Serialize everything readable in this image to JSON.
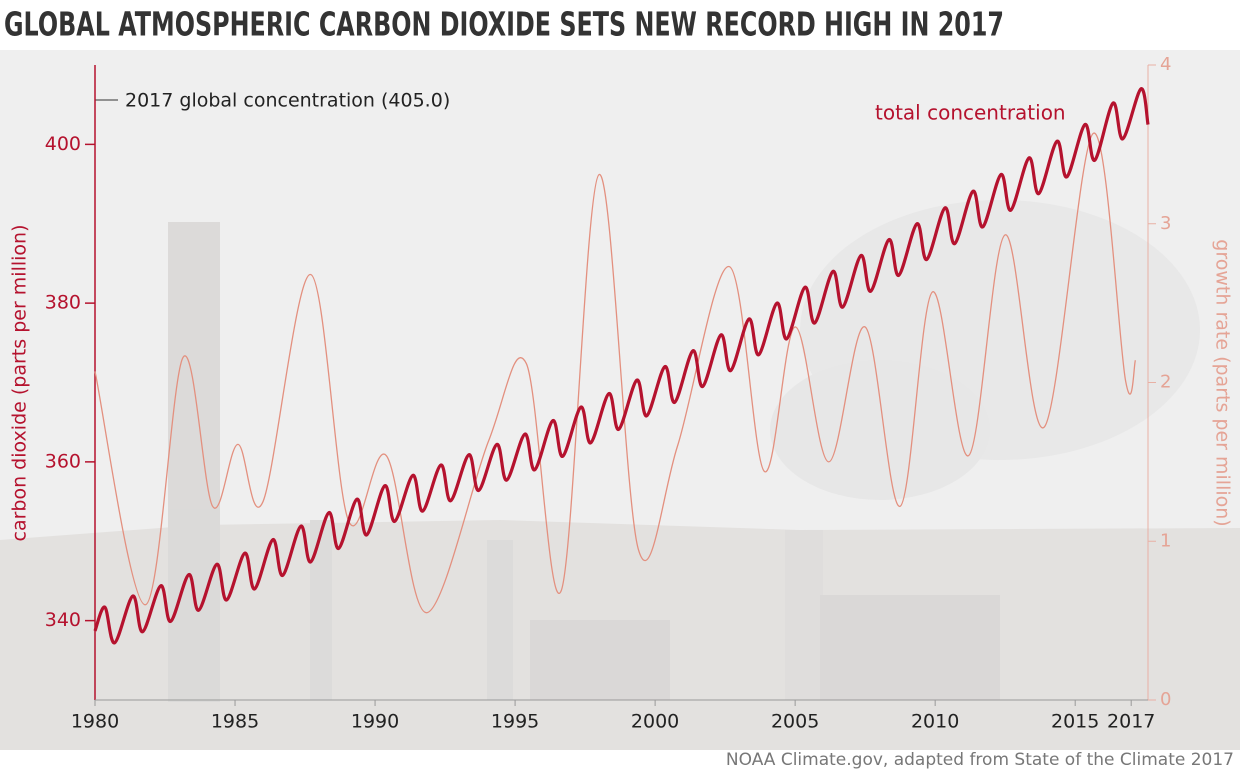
{
  "chart_data": {
    "type": "line",
    "title": "GLOBAL ATMOSPHERIC CARBON DIOXIDE SETS NEW RECORD HIGH IN 2017",
    "ylabel": "carbon dioxide (parts per million)",
    "y2label": "growth rate (parts per million)",
    "annotations": [
      "2017 global concentration (405.0)",
      "total concentration"
    ],
    "source": "NOAA Climate.gov, adapted from State of the Climate 2017",
    "xlim": [
      1980,
      2017.6
    ],
    "xticks": [
      1980,
      1985,
      1990,
      1995,
      2000,
      2005,
      2010,
      2015,
      2017
    ],
    "ylim": [
      330,
      410
    ],
    "yticks": [
      340,
      360,
      380,
      400
    ],
    "y2lim": [
      0,
      4
    ],
    "y2ticks": [
      0,
      1,
      2,
      3,
      4
    ],
    "series": [
      {
        "color": "#b5122e",
        "x": [
          1980,
          1980.35,
          1980.7,
          1981.35,
          1981.7,
          1982.35,
          1982.7,
          1983.35,
          1983.7,
          1984.35,
          1984.7,
          1985.35,
          1985.7,
          1986.35,
          1986.7,
          1987.35,
          1987.7,
          1988.35,
          1988.7,
          1989.35,
          1989.7,
          1990.35,
          1990.7,
          1991.35,
          1991.7,
          1992.35,
          1992.7,
          1993.35,
          1993.7,
          1994.35,
          1994.7,
          1995.35,
          1995.7,
          1996.35,
          1996.7,
          1997.35,
          1997.7,
          1998.35,
          1998.7,
          1999.35,
          1999.7,
          2000.35,
          2000.7,
          2001.35,
          2001.7,
          2002.35,
          2002.7,
          2003.35,
          2003.7,
          2004.35,
          2004.7,
          2005.35,
          2005.7,
          2006.35,
          2006.7,
          2007.35,
          2007.7,
          2008.35,
          2008.7,
          2009.35,
          2009.7,
          2010.35,
          2010.7,
          2011.35,
          2011.7,
          2012.35,
          2012.7,
          2013.35,
          2013.7,
          2014.35,
          2014.7,
          2015.35,
          2015.7,
          2016.35,
          2016.7,
          2017.35,
          2017.6
        ],
        "values": [
          338.7,
          341.7,
          337.2,
          343.1,
          338.6,
          344.4,
          339.9,
          345.8,
          341.3,
          347.1,
          342.6,
          348.5,
          344.0,
          350.2,
          345.7,
          351.9,
          347.4,
          353.6,
          349.1,
          355.3,
          350.8,
          357.0,
          352.5,
          358.3,
          353.8,
          359.6,
          355.1,
          360.9,
          356.4,
          362.2,
          357.7,
          363.5,
          359.0,
          365.2,
          360.7,
          366.9,
          362.4,
          368.6,
          364.1,
          370.3,
          365.8,
          372.0,
          367.5,
          374.0,
          369.5,
          376.0,
          371.5,
          378.0,
          373.5,
          380.0,
          375.5,
          382.0,
          377.5,
          384.0,
          379.5,
          386.0,
          381.5,
          388.0,
          383.5,
          390.0,
          385.5,
          392.0,
          387.5,
          394.1,
          389.6,
          396.2,
          391.7,
          398.3,
          393.8,
          400.4,
          395.9,
          402.5,
          398.0,
          405.2,
          400.7,
          407.0,
          402.5
        ]
      },
      {
        "color": "#e3907f",
        "axis": "y2",
        "x": [
          1980.0,
          1981.8,
          1983.15,
          1984.2,
          1985.1,
          1986.0,
          1987.7,
          1989.05,
          1990.4,
          1991.85,
          1994.05,
          1995.4,
          1996.65,
          1998.0,
          1999.4,
          2000.8,
          2002.65,
          2003.9,
          2005.0,
          2006.2,
          2007.5,
          2008.75,
          2009.9,
          2011.2,
          2012.5,
          2013.9,
          2015.65,
          2016.8,
          2017.15
        ],
        "values": [
          2.07,
          0.6,
          2.16,
          1.22,
          1.61,
          1.25,
          2.68,
          1.13,
          1.54,
          0.55,
          1.63,
          2.12,
          0.69,
          3.31,
          0.95,
          1.6,
          2.73,
          1.44,
          2.35,
          1.5,
          2.35,
          1.22,
          2.57,
          1.54,
          2.93,
          1.72,
          3.57,
          2.01,
          2.14
        ]
      }
    ]
  }
}
